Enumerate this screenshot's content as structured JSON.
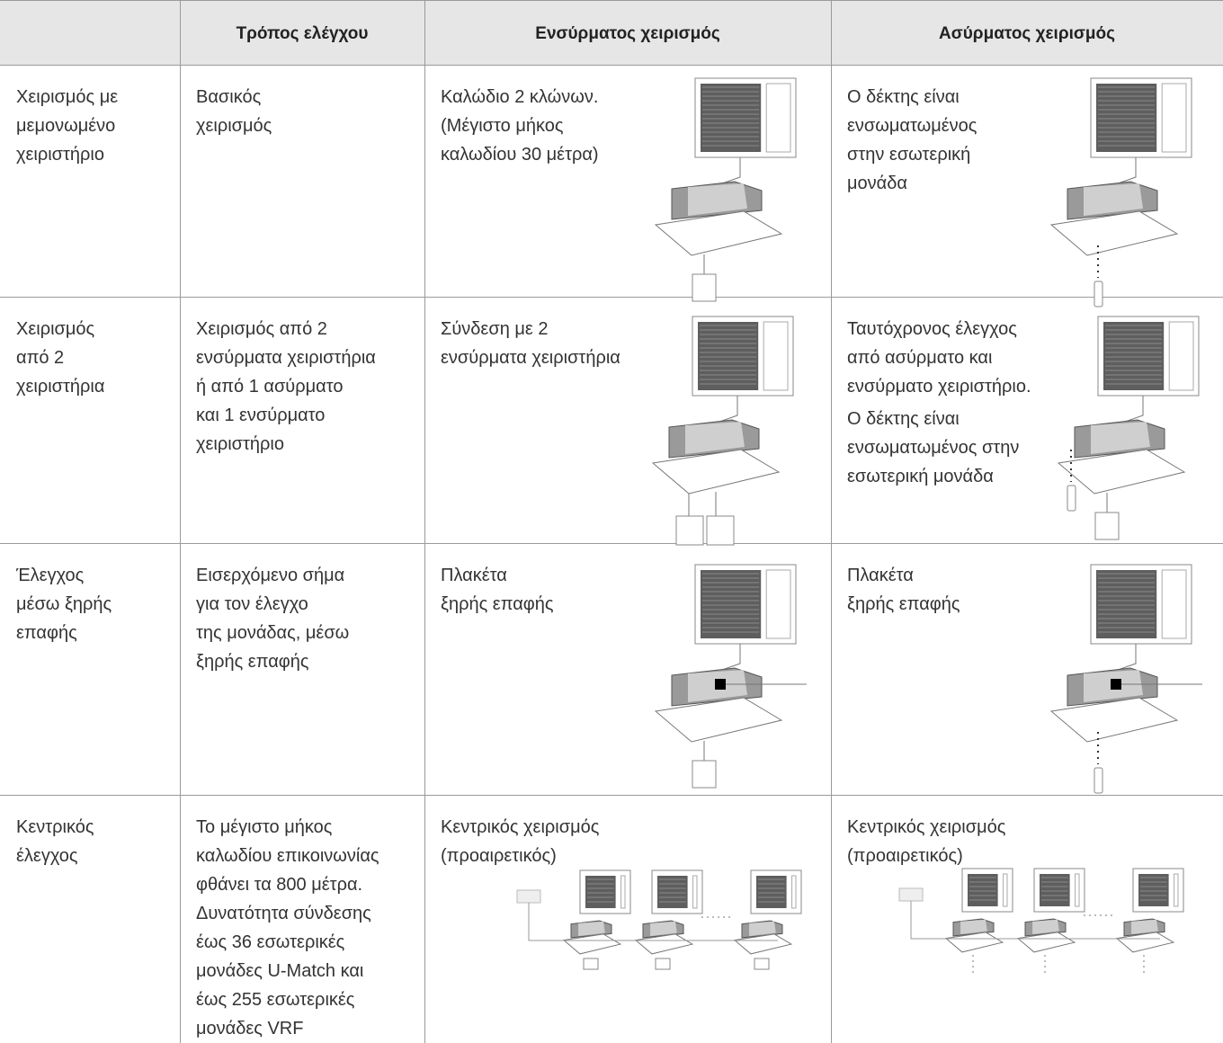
{
  "table": {
    "header": [
      "Τρόπος ελέγχου",
      "Ενσύρματος χειρισμός",
      "Ασύρματος χειρισμός"
    ],
    "rows": [
      [
        [
          [
            "Χειρισμός με",
            "μεμονωμένο",
            "χειριστήριο"
          ]
        ],
        [
          [
            "Βασικός",
            "χειρισμός"
          ]
        ],
        [
          [
            "Καλώδιο 2 κλώνων.",
            "(Μέγιστο μήκος",
            "καλωδίου 30 μέτρα)"
          ]
        ],
        [
          [
            "Ο δέκτης είναι",
            "ενσωματωμένος",
            "στην εσωτερική",
            "μονάδα"
          ]
        ]
      ],
      [
        [
          [
            "Χειρισμός",
            "από 2",
            "χειριστήρια"
          ]
        ],
        [
          [
            "Χειρισμός από 2",
            "ενσύρματα χειριστήρια",
            "ή από 1 ασύρματο",
            "και 1 ενσύρματο",
            "χειριστήριο"
          ]
        ],
        [
          [
            "Σύνδεση με 2",
            "ενσύρματα χειριστήρια"
          ]
        ],
        [
          [
            "Ταυτόχρονος έλεγχος",
            "από ασύρματο και",
            "ενσύρματο χειριστήριο."
          ],
          [
            "Ο δέκτης είναι",
            "ενσωματωμένος στην",
            "εσωτερική μονάδα"
          ]
        ]
      ],
      [
        [
          [
            "Έλεγχος",
            "μέσω ξηρής",
            "επαφής"
          ]
        ],
        [
          [
            "Εισερχόμενο σήμα",
            "για τον έλεγχο",
            "της μονάδας, μέσω",
            "ξηρής επαφής"
          ]
        ],
        [
          [
            "Πλακέτα",
            "ξηρής επαφής"
          ]
        ],
        [
          [
            "Πλακέτα",
            "ξηρής επαφής"
          ]
        ]
      ],
      [
        [
          [
            "Κεντρικός",
            "έλεγχος"
          ]
        ],
        [
          [
            "Το μέγιστο μήκος",
            "καλωδίου επικοινωνίας",
            "φθάνει τα 800 μέτρα.",
            "Δυνατότητα σύνδεσης",
            "έως 36 εσωτερικές",
            "μονάδες U-Match και",
            "έως 255 εσωτερικές",
            "μονάδες VRF"
          ]
        ],
        [
          [
            "Κεντρικός χειρισμός",
            "(προαιρετικός)"
          ]
        ],
        [
          [
            "Κεντρικός χειρισμός",
            "(προαιρετικός)"
          ]
        ]
      ]
    ]
  }
}
